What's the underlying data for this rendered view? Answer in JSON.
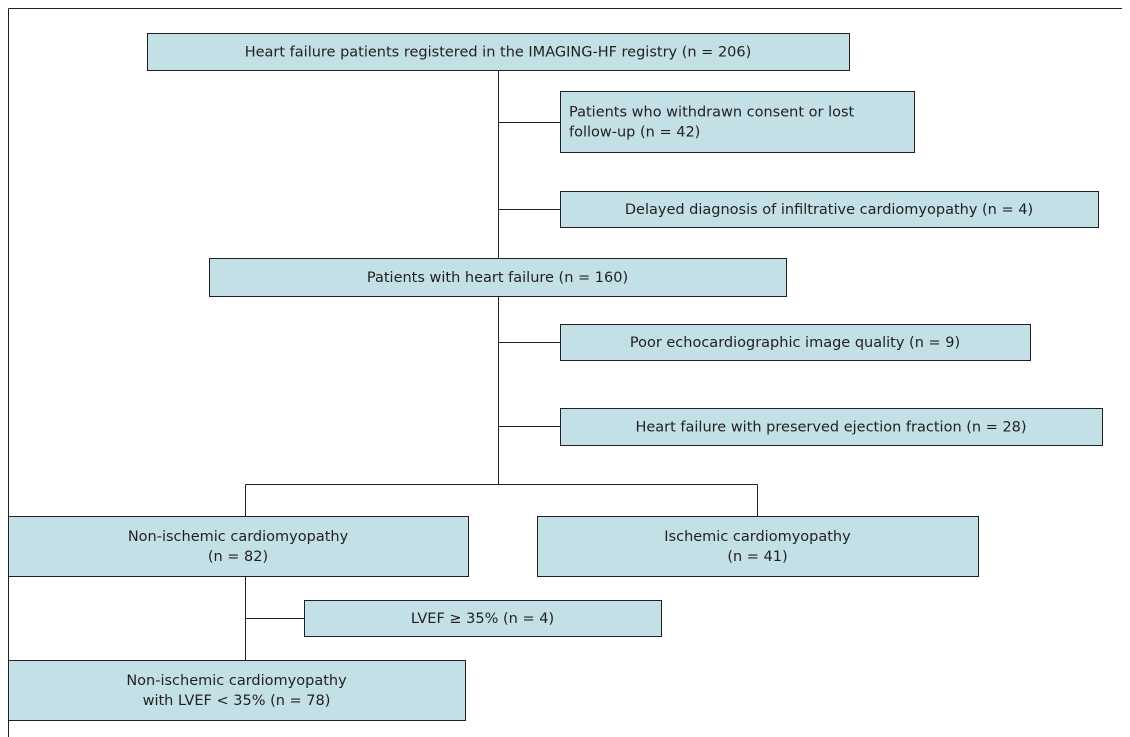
{
  "nodes": [
    {
      "lines": [
        "Heart failure patients registered in the IMAGING-HF registry (n = 206)"
      ]
    },
    {
      "lines": [
        "Patients who withdrawn consent or lost",
        "follow-up (n = 42)"
      ]
    },
    {
      "lines": [
        "Delayed diagnosis of infiltrative cardiomyopathy (n = 4)"
      ]
    },
    {
      "lines": [
        "Patients with heart failure (n = 160)"
      ]
    },
    {
      "lines": [
        "Poor echocardiographic image quality (n = 9)"
      ]
    },
    {
      "lines": [
        "Heart failure with preserved ejection fraction (n = 28)"
      ]
    },
    {
      "lines": [
        "Non-ischemic cardiomyopathy",
        "(n = 82)"
      ]
    },
    {
      "lines": [
        "Ischemic cardiomyopathy",
        "(n = 41)"
      ]
    },
    {
      "lines": [
        "LVEF ≥ 35% (n = 4)"
      ]
    },
    {
      "lines": [
        "Non-ischemic cardiomyopathy",
        "with LVEF < 35% (n = 78)"
      ]
    }
  ]
}
